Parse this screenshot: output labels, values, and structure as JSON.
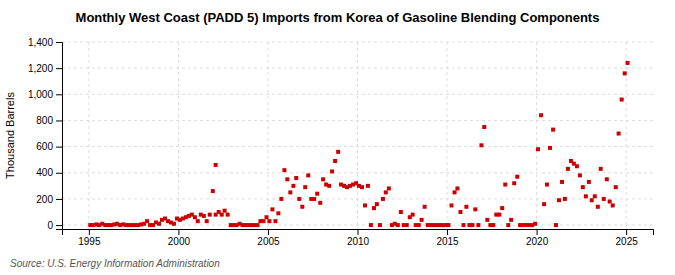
{
  "chart_data": {
    "type": "scatter",
    "title": "Monthly West Coast (PADD 5) Imports from Korea of Gasoline Blending Components",
    "ylabel": "Thousand Barrels",
    "annotations": [
      "Source: U.S. Energy Information Administration"
    ],
    "color": "#cc0000",
    "marker": "square",
    "grid": true,
    "xlim": [
      1993.5,
      2026.5
    ],
    "ylim": [
      -30,
      1400
    ],
    "xticks": [
      1995,
      2000,
      2005,
      2010,
      2015,
      2020,
      2025
    ],
    "yticks": [
      0,
      200,
      400,
      600,
      800,
      {
        "value": 1000,
        "label": "1,000"
      },
      {
        "value": 1200,
        "label": "1,200"
      },
      {
        "value": 1400,
        "label": "1,400"
      }
    ],
    "x": [
      1995.08,
      1995.25,
      1995.42,
      1995.58,
      1995.75,
      1995.92,
      1996.08,
      1996.25,
      1996.42,
      1996.58,
      1996.75,
      1996.92,
      1997.08,
      1997.25,
      1997.42,
      1997.58,
      1997.75,
      1997.92,
      1998.08,
      1998.25,
      1998.42,
      1998.58,
      1998.75,
      1998.92,
      1999.08,
      1999.25,
      1999.42,
      1999.58,
      1999.75,
      1999.92,
      2000.08,
      2000.25,
      2000.42,
      2000.58,
      2000.75,
      2000.92,
      2001.08,
      2001.25,
      2001.42,
      2001.58,
      2001.75,
      2001.92,
      2002.08,
      2002.25,
      2002.42,
      2002.58,
      2002.75,
      2002.92,
      2002.08,
      2003.08,
      2003.25,
      2003.42,
      2003.58,
      2003.75,
      2003.92,
      2004.08,
      2004.25,
      2004.42,
      2004.58,
      2004.75,
      2004.92,
      2005.08,
      2005.25,
      2005.42,
      2005.58,
      2005.75,
      2005.92,
      2006.08,
      2006.25,
      2006.42,
      2006.58,
      2006.75,
      2006.92,
      2007.08,
      2007.25,
      2007.42,
      2007.58,
      2007.75,
      2007.92,
      2008.08,
      2008.25,
      2008.42,
      2008.58,
      2008.75,
      2008.92,
      2009.08,
      2009.25,
      2009.42,
      2009.58,
      2009.75,
      2009.92,
      2010.08,
      2010.25,
      2010.42,
      2010.58,
      2010.75,
      2010.92,
      2011.08,
      2011.25,
      2011.42,
      2011.58,
      2011.75,
      2011.92,
      2012.08,
      2012.25,
      2012.42,
      2012.58,
      2012.75,
      2012.92,
      2013.08,
      2013.25,
      2013.42,
      2013.58,
      2013.75,
      2013.92,
      2014.08,
      2014.25,
      2014.42,
      2014.58,
      2014.75,
      2014.92,
      2015.08,
      2015.25,
      2015.42,
      2015.58,
      2015.75,
      2015.92,
      2016.08,
      2016.25,
      2016.42,
      2016.58,
      2016.75,
      2016.92,
      2017.08,
      2017.25,
      2017.42,
      2017.58,
      2017.75,
      2017.92,
      2018.08,
      2018.25,
      2018.42,
      2018.58,
      2018.75,
      2018.92,
      2019.08,
      2019.25,
      2019.42,
      2019.58,
      2019.75,
      2019.92,
      2020.08,
      2020.25,
      2020.42,
      2020.58,
      2020.75,
      2020.92,
      2021.08,
      2021.25,
      2021.42,
      2021.58,
      2021.75,
      2021.92,
      2022.08,
      2022.25,
      2022.42,
      2022.58,
      2022.75,
      2022.92,
      2023.08,
      2023.25,
      2023.42,
      2023.58,
      2023.75,
      2023.92,
      2024.08,
      2024.25,
      2024.42,
      2024.58,
      2024.75,
      2024.92,
      2025.08
    ],
    "y": [
      0,
      0,
      5,
      0,
      10,
      0,
      0,
      0,
      5,
      10,
      0,
      5,
      0,
      0,
      0,
      0,
      0,
      5,
      10,
      30,
      0,
      0,
      20,
      10,
      40,
      50,
      30,
      20,
      10,
      50,
      40,
      50,
      60,
      70,
      80,
      60,
      30,
      80,
      70,
      30,
      80,
      260,
      80,
      100,
      80,
      110,
      80,
      0,
      460,
      0,
      0,
      10,
      0,
      0,
      0,
      0,
      0,
      0,
      30,
      30,
      60,
      30,
      120,
      30,
      90,
      200,
      420,
      350,
      250,
      300,
      360,
      200,
      140,
      290,
      380,
      200,
      200,
      240,
      170,
      350,
      310,
      300,
      410,
      490,
      560,
      310,
      300,
      290,
      300,
      310,
      320,
      300,
      290,
      150,
      300,
      0,
      130,
      160,
      0,
      200,
      250,
      280,
      0,
      10,
      0,
      100,
      0,
      0,
      60,
      80,
      0,
      0,
      40,
      140,
      0,
      0,
      0,
      0,
      0,
      0,
      0,
      0,
      150,
      250,
      280,
      100,
      0,
      140,
      0,
      0,
      120,
      0,
      610,
      750,
      40,
      0,
      0,
      80,
      80,
      130,
      310,
      0,
      40,
      320,
      370,
      0,
      0,
      0,
      0,
      0,
      10,
      580,
      840,
      160,
      310,
      590,
      730,
      0,
      190,
      330,
      200,
      430,
      490,
      470,
      450,
      380,
      290,
      220,
      330,
      190,
      220,
      140,
      430,
      200,
      350,
      180,
      150,
      290,
      700,
      960,
      1160,
      1240
    ]
  }
}
